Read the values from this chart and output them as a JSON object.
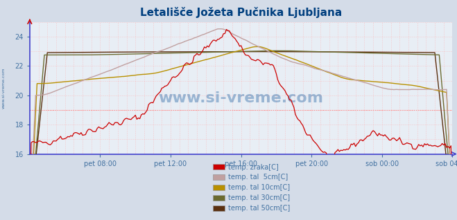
{
  "title": "Letališče Jožeta Pučnika Ljubljana",
  "title_color": "#003f7f",
  "background_color": "#d4dce8",
  "plot_bg_color": "#e8eef5",
  "ylim": [
    16,
    25
  ],
  "yticks": [
    16,
    18,
    20,
    22,
    24
  ],
  "xlabel_color": "#4070a0",
  "axis_color": "#4040cc",
  "red_arrow_color": "#cc0000",
  "watermark": "www.si-vreme.com",
  "watermark_color": "#2060a0",
  "legend_text_color": "#4070a0",
  "legend_labels": [
    "temp. zraka[C]",
    "temp. tal  5cm[C]",
    "temp. tal 10cm[C]",
    "temp. tal 30cm[C]",
    "temp. tal 50cm[C]"
  ],
  "legend_colors": [
    "#cc0000",
    "#c0a0a0",
    "#b89000",
    "#6b6b30",
    "#5a3010"
  ],
  "xtick_labels": [
    "pet 08:00",
    "pet 12:00",
    "pet 16:00",
    "pet 20:00",
    "sob 00:00",
    "sob 04:00"
  ],
  "xtick_positions": [
    48,
    96,
    144,
    192,
    240,
    288
  ],
  "x_max": 288,
  "n_points": 289,
  "left_label": "www.si-vreme.com",
  "grid_color": "#ffaaaa",
  "grid_color_bold": "#ff7777"
}
